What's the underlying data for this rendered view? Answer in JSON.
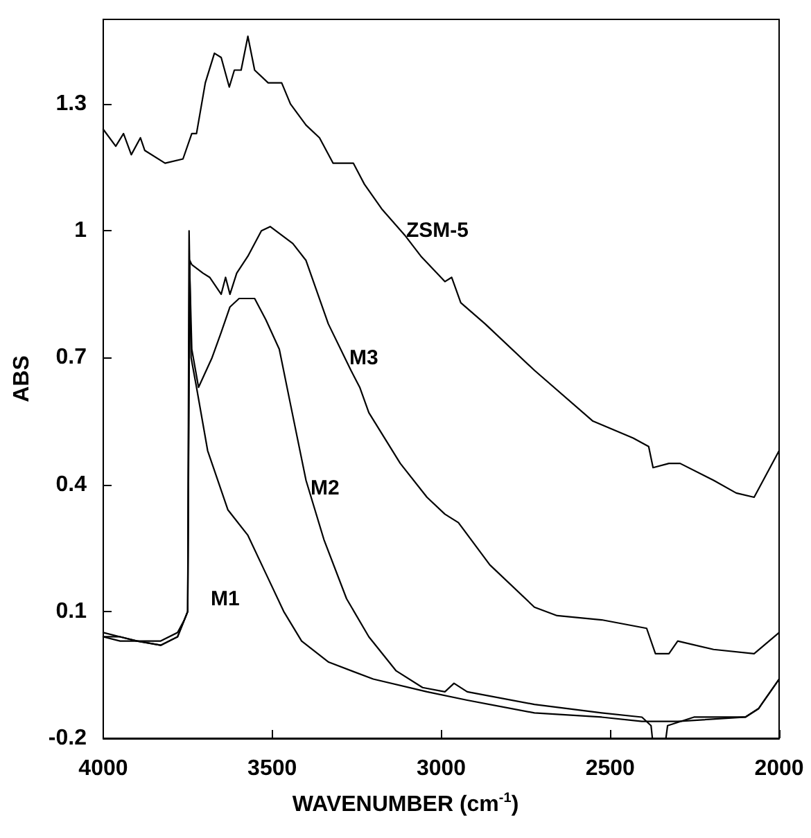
{
  "chart_data": {
    "type": "line",
    "xlabel": "WAVENUMBER (cm$^{-1}$)",
    "ylabel": "ABS",
    "xlim": [
      4000,
      2000
    ],
    "xticks": [
      4000,
      3500,
      3000,
      2500,
      2000
    ],
    "ylim": [
      -0.2,
      1.5
    ],
    "yticks": [
      -0.2,
      0.1,
      0.4,
      0.7,
      1,
      1.3
    ],
    "grid": false,
    "marker": "none",
    "line_style": "solid",
    "series": [
      {
        "name": "ZSM-5",
        "color": "#000000",
        "x": [
          4000,
          3963,
          3940,
          3917,
          3890,
          3877,
          3817,
          3764,
          3738,
          3724,
          3698,
          3671,
          3651,
          3627,
          3612,
          3592,
          3572,
          3552,
          3512,
          3472,
          3446,
          3400,
          3360,
          3320,
          3260,
          3227,
          3174,
          3108,
          3060,
          2989,
          2969,
          2942,
          2870,
          2724,
          2551,
          2432,
          2386,
          2373,
          2326,
          2293,
          2194,
          2127,
          2074,
          2000
        ],
        "values": [
          1.24,
          1.2,
          1.23,
          1.18,
          1.22,
          1.19,
          1.16,
          1.17,
          1.23,
          1.23,
          1.35,
          1.42,
          1.41,
          1.34,
          1.38,
          1.38,
          1.46,
          1.38,
          1.35,
          1.35,
          1.3,
          1.25,
          1.22,
          1.16,
          1.16,
          1.11,
          1.05,
          0.99,
          0.94,
          0.88,
          0.89,
          0.83,
          0.78,
          0.67,
          0.55,
          0.51,
          0.49,
          0.44,
          0.45,
          0.45,
          0.41,
          0.38,
          0.37,
          0.48
        ]
      },
      {
        "name": "M3",
        "color": "#000000",
        "x": [
          4000,
          3950,
          3900,
          3830,
          3780,
          3760,
          3750,
          3744,
          3738,
          3705,
          3685,
          3651,
          3638,
          3625,
          3605,
          3572,
          3532,
          3506,
          3439,
          3400,
          3334,
          3267,
          3241,
          3214,
          3121,
          3042,
          2989,
          2949,
          2856,
          2724,
          2657,
          2525,
          2392,
          2366,
          2326,
          2300,
          2194,
          2074,
          2000
        ],
        "values": [
          0.04,
          0.03,
          0.03,
          0.02,
          0.04,
          0.08,
          0.1,
          0.93,
          0.92,
          0.9,
          0.89,
          0.85,
          0.89,
          0.85,
          0.9,
          0.94,
          1.0,
          1.01,
          0.97,
          0.93,
          0.78,
          0.67,
          0.63,
          0.57,
          0.45,
          0.37,
          0.33,
          0.31,
          0.21,
          0.11,
          0.09,
          0.08,
          0.06,
          0.0,
          0.0,
          0.03,
          0.01,
          0.0,
          0.05
        ]
      },
      {
        "name": "M2",
        "color": "#000000",
        "x": [
          4000,
          3950,
          3900,
          3830,
          3780,
          3760,
          3750,
          3745,
          3738,
          3718,
          3678,
          3651,
          3625,
          3598,
          3552,
          3519,
          3479,
          3446,
          3400,
          3347,
          3280,
          3214,
          3134,
          3055,
          2989,
          2962,
          2923,
          2724,
          2525,
          2406,
          2379,
          2375,
          2355,
          2335,
          2330,
          2252,
          2100,
          2061,
          2000
        ],
        "values": [
          0.05,
          0.04,
          0.03,
          0.03,
          0.05,
          0.08,
          0.1,
          0.93,
          0.72,
          0.63,
          0.7,
          0.76,
          0.82,
          0.84,
          0.84,
          0.79,
          0.72,
          0.59,
          0.41,
          0.27,
          0.13,
          0.04,
          -0.04,
          -0.08,
          -0.09,
          -0.07,
          -0.09,
          -0.12,
          -0.14,
          -0.15,
          -0.17,
          -0.2,
          null,
          -0.2,
          -0.17,
          -0.15,
          -0.15,
          -0.13,
          -0.06
        ]
      },
      {
        "name": "M1",
        "color": "#000000",
        "x": [
          4000,
          3950,
          3900,
          3830,
          3780,
          3760,
          3750,
          3746,
          3740,
          3724,
          3691,
          3631,
          3572,
          3519,
          3466,
          3413,
          3333,
          3201,
          3042,
          2923,
          2724,
          2525,
          2406,
          2300,
          2100,
          2061,
          2000
        ],
        "values": [
          0.04,
          0.04,
          0.03,
          0.02,
          0.04,
          0.08,
          0.1,
          1.0,
          0.7,
          0.63,
          0.48,
          0.34,
          0.28,
          0.19,
          0.1,
          0.03,
          -0.02,
          -0.06,
          -0.09,
          -0.11,
          -0.14,
          -0.15,
          -0.16,
          -0.16,
          -0.15,
          -0.13,
          -0.06
        ]
      }
    ]
  }
}
